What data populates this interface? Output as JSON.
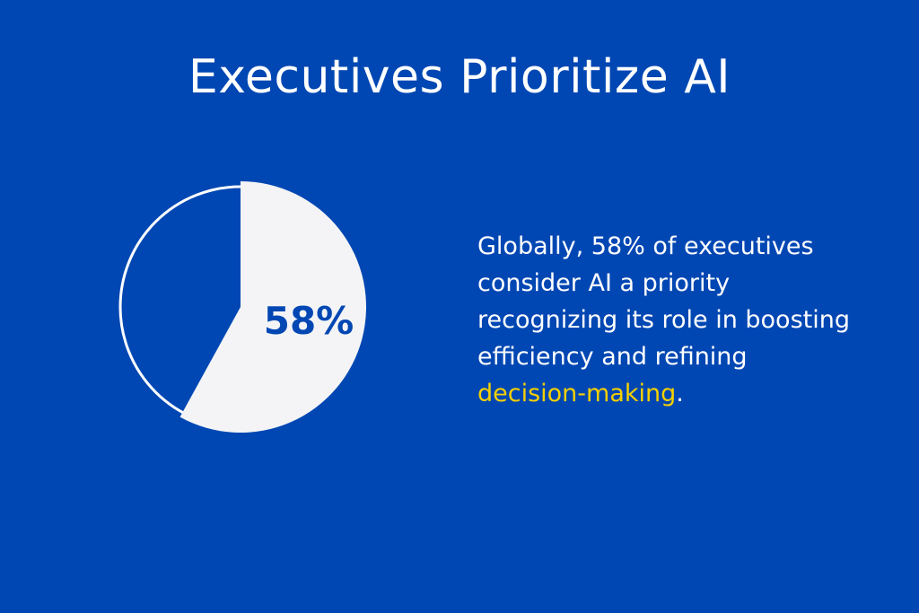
{
  "colors": {
    "background": "#0047b3",
    "slice_fill": "#f4f4f6",
    "ring_stroke": "#ffffff",
    "value_text": "#0047b3",
    "highlight": "#f5d000"
  },
  "chart_data": {
    "type": "pie",
    "title": "Executives Prioritize AI",
    "values": [
      58,
      42
    ],
    "labels": [
      "",
      ""
    ],
    "center_label": "58%",
    "legend": "none"
  },
  "description": {
    "lines": [
      "Globally, 58% of executives",
      "consider AI a priority",
      "recognizing its role in boosting",
      "efficiency and refining"
    ],
    "highlight": "decision-making",
    "trailing": "."
  }
}
